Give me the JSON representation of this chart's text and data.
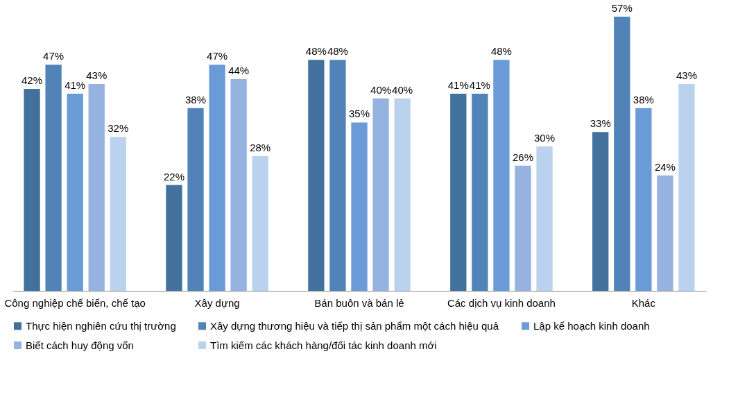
{
  "chart_data": {
    "type": "bar",
    "categories": [
      "Công nghiệp chế biến, chế tạo",
      "Xây dựng",
      "Bán buôn và bán lẻ",
      "Các dịch vụ kinh doanh",
      "Khác"
    ],
    "series": [
      {
        "name": "Thực hiện nghiên cứu thị trường",
        "color": "#41719c",
        "values": [
          42,
          22,
          48,
          41,
          33
        ],
        "value_labels": [
          "42%",
          "22%",
          "48%",
          "41%",
          "33%"
        ]
      },
      {
        "name": "Xây dựng thương hiệu và tiếp thị sản phẩm một cách hiệu quả",
        "color": "#5183b8",
        "values": [
          47,
          38,
          48,
          41,
          57
        ],
        "value_labels": [
          "47%",
          "38%",
          "48%",
          "41%",
          "57%"
        ]
      },
      {
        "name": "Lập kế hoạch kinh doanh",
        "color": "#6a9bd6",
        "values": [
          41,
          47,
          35,
          48,
          38
        ],
        "value_labels": [
          "41%",
          "47%",
          "35%",
          "48%",
          "38%"
        ]
      },
      {
        "name": "Biết cách huy động vốn",
        "color": "#95b3de",
        "values": [
          43,
          44,
          40,
          26,
          24
        ],
        "value_labels": [
          "43%",
          "44%",
          "40%",
          "26%",
          "24%"
        ]
      },
      {
        "name": "Tìm kiếm các khách hàng/đối tác kinh doanh mới",
        "color": "#bad2ee",
        "values": [
          32,
          28,
          40,
          30,
          43
        ],
        "value_labels": [
          "32%",
          "28%",
          "40%",
          "30%",
          "43%"
        ]
      }
    ],
    "legend": "bottom",
    "grid": false
  }
}
